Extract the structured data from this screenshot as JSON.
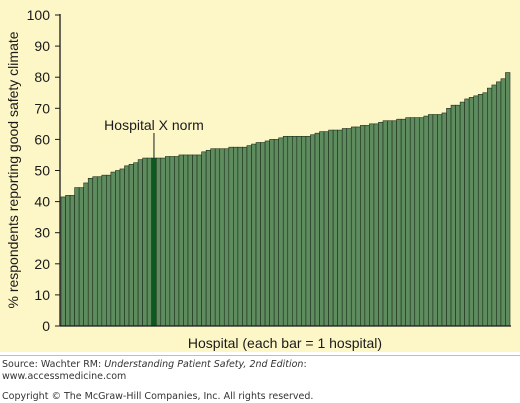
{
  "chart_data": {
    "type": "bar",
    "title": "",
    "xlabel": "Hospital (each bar = 1 hospital)",
    "ylabel": "% respondents reporting good safety climate",
    "ylim": [
      0,
      100
    ],
    "yticks": [
      0,
      10,
      20,
      30,
      40,
      50,
      60,
      70,
      80,
      90,
      100
    ],
    "grid": false,
    "highlight_index": 20,
    "annotation": "Hospital X norm",
    "colors": {
      "bar": "#5e8c5e",
      "bar_edge": "#1c2e1c",
      "highlight": "#0b5a22",
      "background": "#fdf7c7"
    },
    "values": [
      41.5,
      42,
      42,
      44.5,
      44.5,
      46,
      47.5,
      48,
      48,
      48.5,
      48.5,
      49.5,
      50,
      50.5,
      51.5,
      52,
      52.5,
      53.5,
      54,
      54,
      54,
      54,
      54,
      54.5,
      54.5,
      54.5,
      55,
      55,
      55,
      55,
      55,
      56,
      56.5,
      57,
      57,
      57,
      57,
      57.5,
      57.5,
      57.5,
      57.5,
      58,
      58.5,
      59,
      59,
      59.5,
      60,
      60,
      60.5,
      61,
      61,
      61,
      61,
      61,
      61,
      61.5,
      62,
      62.5,
      62.5,
      63,
      63,
      63,
      63.5,
      63.5,
      64,
      64,
      64.5,
      64.5,
      65,
      65,
      65.5,
      66,
      66,
      66,
      66.5,
      66.5,
      67,
      67,
      67,
      67,
      67.5,
      68,
      68,
      68,
      68.5,
      70,
      71,
      71,
      72,
      73,
      73.5,
      74,
      74.5,
      75,
      76.5,
      77.5,
      78.5,
      79.5,
      81.5
    ]
  },
  "caption": {
    "source_prefix": "Source: Wachter RM: ",
    "source_title": "Understanding Patient Safety, 2nd Edition",
    "source_suffix": ":",
    "url": "www.accessmedicine.com",
    "copyright": "Copyright © The McGraw-Hill Companies, Inc. All rights reserved."
  }
}
